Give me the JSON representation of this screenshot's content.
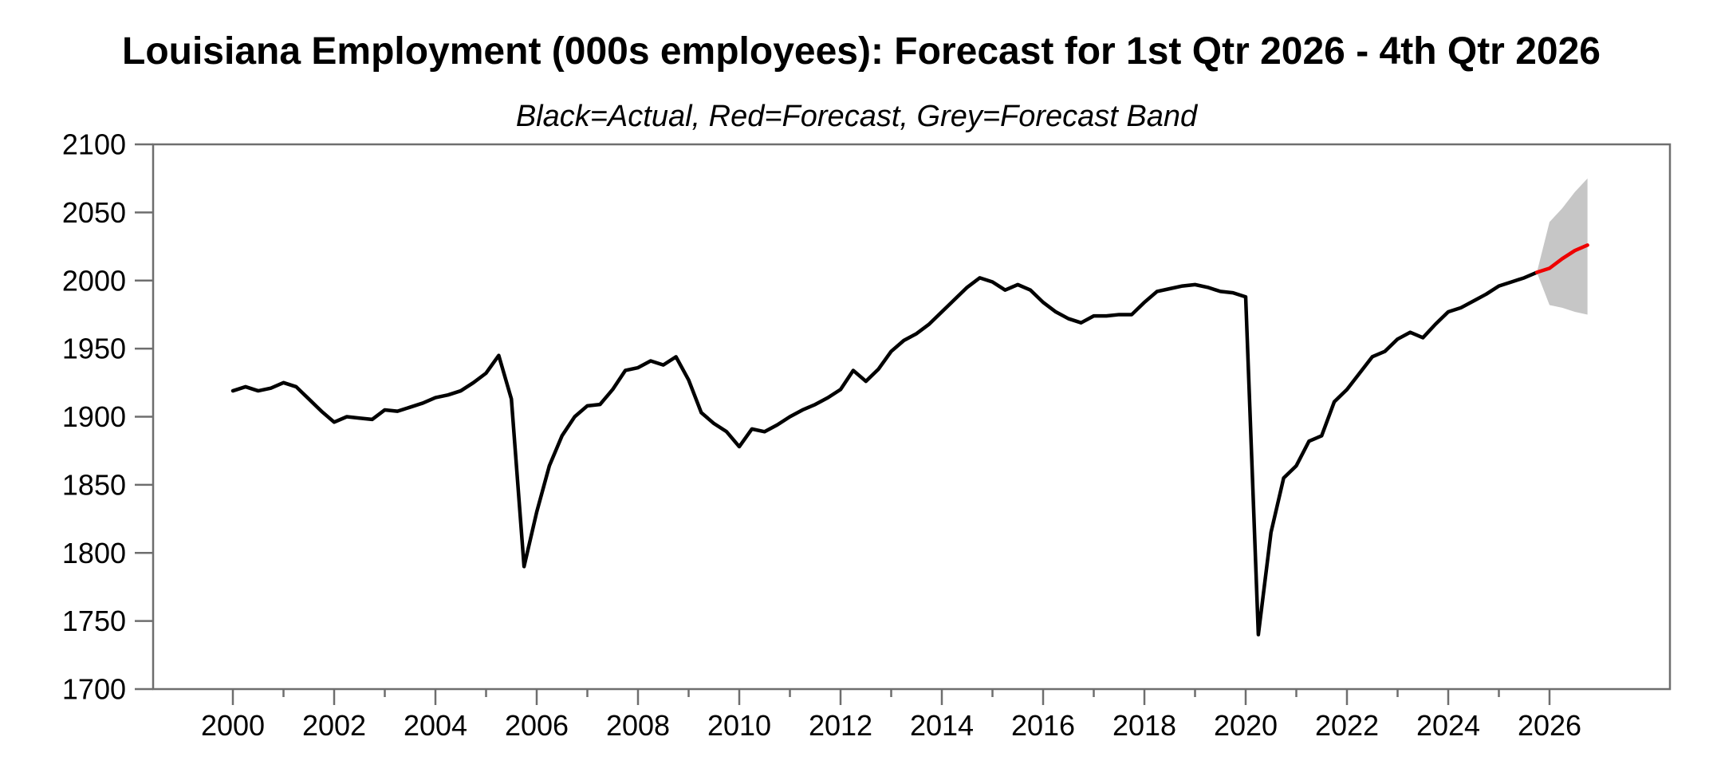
{
  "chart_data": {
    "type": "line",
    "title": "Louisiana Employment (000s employees): Forecast for 1st Qtr 2026 - 4th Qtr 2026",
    "subtitle": "Black=Actual, Red=Forecast, Grey=Forecast Band",
    "ylim": [
      1700,
      2100
    ],
    "yticks": [
      1700,
      1750,
      1800,
      1850,
      1900,
      1950,
      2000,
      2050,
      2100
    ],
    "xticks_major": [
      2000,
      2002,
      2004,
      2006,
      2008,
      2010,
      2012,
      2014,
      2016,
      2018,
      2020,
      2022,
      2024,
      2026
    ],
    "xticks_minor": [
      2001,
      2003,
      2005,
      2007,
      2009,
      2011,
      2013,
      2015,
      2017,
      2019,
      2021,
      2023,
      2025
    ],
    "xlim": [
      1998.4,
      2028.4
    ],
    "grid": false,
    "legend_position": "subtitle",
    "frequency": "quarterly",
    "series": [
      {
        "name": "Forecast Band",
        "type": "band",
        "color": "#c6c6c6",
        "x_start": 2025.75,
        "x_step": 0.25,
        "upper": [
          2006,
          2043,
          2053,
          2065,
          2075
        ],
        "lower": [
          2006,
          1982,
          1980,
          1977,
          1975
        ]
      },
      {
        "name": "Actual",
        "type": "line",
        "color": "#000000",
        "x_start": 2000.0,
        "x_step": 0.25,
        "values": [
          1919,
          1922,
          1919,
          1921,
          1925,
          1922,
          1913,
          1904,
          1896,
          1900,
          1899,
          1898,
          1905,
          1904,
          1907,
          1910,
          1914,
          1916,
          1919,
          1925,
          1932,
          1945,
          1913,
          1790,
          1830,
          1864,
          1886,
          1900,
          1908,
          1909,
          1920,
          1934,
          1936,
          1941,
          1938,
          1944,
          1927,
          1903,
          1895,
          1889,
          1878,
          1891,
          1889,
          1894,
          1900,
          1905,
          1909,
          1914,
          1920,
          1934,
          1926,
          1935,
          1948,
          1956,
          1961,
          1968,
          1977,
          1986,
          1995,
          2002,
          1999,
          1993,
          1997,
          1993,
          1984,
          1977,
          1972,
          1969,
          1974,
          1974,
          1975,
          1975,
          1984,
          1992,
          1994,
          1996,
          1997,
          1995,
          1992,
          1991,
          1988,
          1740,
          1815,
          1855,
          1864,
          1882,
          1886,
          1911,
          1920,
          1932,
          1944,
          1948,
          1957,
          1962,
          1958,
          1968,
          1977,
          1980,
          1985,
          1990,
          1996,
          1999,
          2002,
          2006
        ]
      },
      {
        "name": "Forecast",
        "type": "line",
        "color": "#ee0000",
        "x_start": 2025.75,
        "x_step": 0.25,
        "values": [
          2006,
          2009,
          2016,
          2022,
          2026
        ]
      }
    ],
    "style": {
      "actual_color": "#000000",
      "forecast_color": "#ee0000",
      "band_color": "#c6c6c6",
      "frame_color": "#6e6e6e",
      "text_color": "#000000",
      "background": "#ffffff"
    }
  }
}
